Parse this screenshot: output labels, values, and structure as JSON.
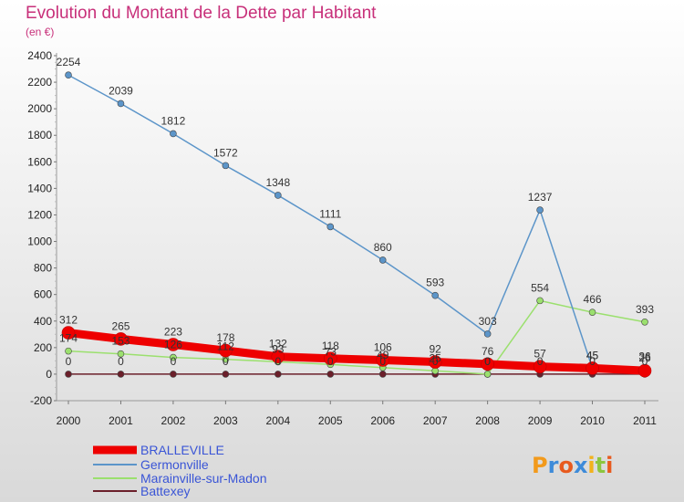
{
  "title": "Evolution du Montant de la Dette par Habitant",
  "subtitle": "(en €)",
  "brand": "Proxiti",
  "chart_data": {
    "type": "line",
    "x": [
      "2000",
      "2001",
      "2002",
      "2003",
      "2004",
      "2005",
      "2006",
      "2007",
      "2008",
      "2009",
      "2010",
      "2011"
    ],
    "ylim": [
      -200,
      2400
    ],
    "yticks": [
      -200,
      0,
      200,
      400,
      600,
      800,
      1000,
      1200,
      1400,
      1600,
      1800,
      2000,
      2200,
      2400
    ],
    "grid": false,
    "legend_position": "bottom",
    "series": [
      {
        "name": "BRALLEVILLE",
        "color": "#ee0000",
        "values": [
          312,
          265,
          223,
          178,
          132,
          118,
          106,
          92,
          76,
          57,
          45,
          26
        ]
      },
      {
        "name": "Germonville",
        "color": "#5c95c9",
        "values": [
          2254,
          2039,
          1812,
          1572,
          1348,
          1111,
          860,
          593,
          303,
          1237,
          45,
          36
        ]
      },
      {
        "name": "Marainville-sur-Madon",
        "color": "#9be06e",
        "values": [
          174,
          153,
          126,
          112,
          93,
          73,
          49,
          25,
          0,
          554,
          466,
          393
        ]
      },
      {
        "name": "Battexey",
        "color": "#6b1f2a",
        "values": [
          0,
          0,
          0,
          0,
          0,
          0,
          0,
          0,
          0,
          0,
          0,
          0
        ]
      }
    ]
  }
}
